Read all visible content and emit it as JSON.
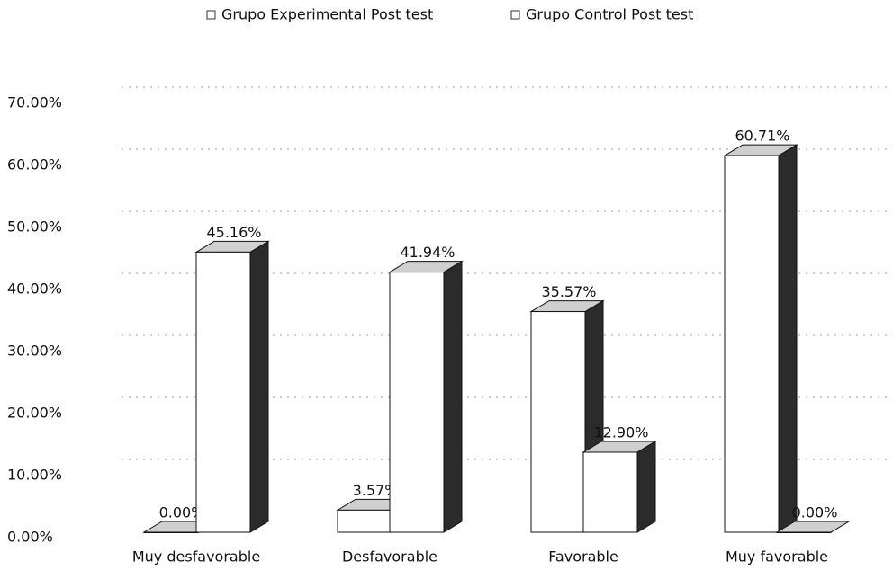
{
  "chart_data": {
    "type": "bar3d",
    "categories": [
      "Muy desfavorable",
      "Desfavorable",
      "Favorable",
      "Muy favorable"
    ],
    "series": [
      {
        "name": "Grupo Experimental Post test",
        "color": "#ffffff",
        "values": [
          0.0,
          3.57,
          35.57,
          60.71
        ],
        "value_labels": [
          "0.00%",
          "3.57%",
          "35.57%",
          "60.71%"
        ]
      },
      {
        "name": "Grupo Control Post test",
        "color": "#ffffff",
        "values": [
          45.16,
          41.94,
          12.9,
          0.0
        ],
        "value_labels": [
          "45.16%",
          "41.94%",
          "12.90%",
          "0.00%"
        ]
      }
    ],
    "ylim": [
      0,
      70
    ],
    "yticks": [
      {
        "value": 0,
        "label": "0.00%"
      },
      {
        "value": 10,
        "label": "10.00%"
      },
      {
        "value": 20,
        "label": "20.00%"
      },
      {
        "value": 30,
        "label": "30.00%"
      },
      {
        "value": 40,
        "label": "40.00%"
      },
      {
        "value": 50,
        "label": "50.00%"
      },
      {
        "value": 60,
        "label": "60.00%"
      },
      {
        "value": 70,
        "label": "70.00%"
      }
    ],
    "grid": true,
    "legend": "top"
  }
}
